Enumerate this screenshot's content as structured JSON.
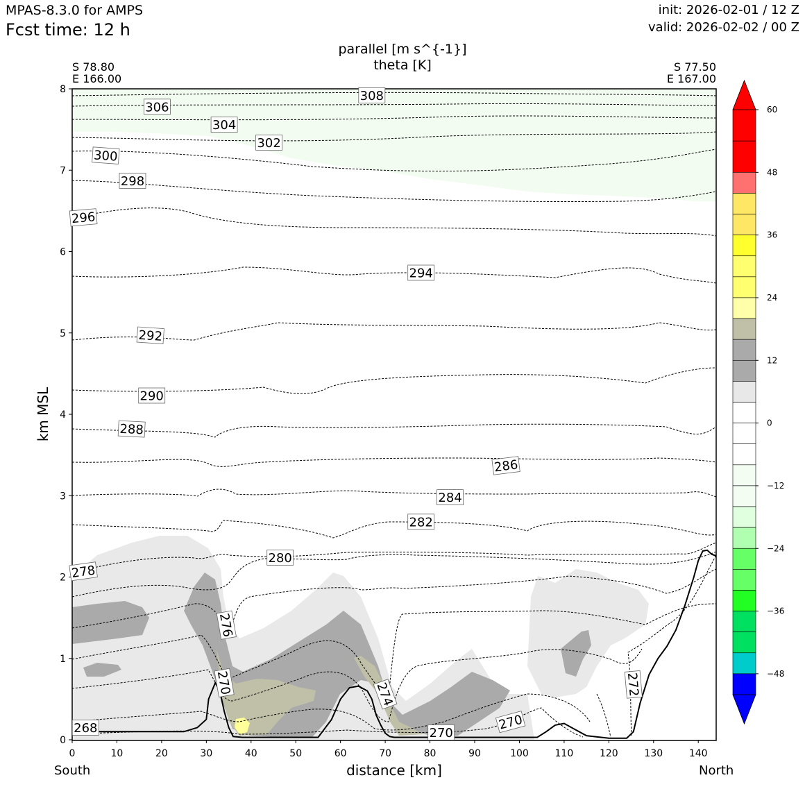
{
  "header": {
    "model": "MPAS-8.3.0 for AMPS",
    "fcst_label": "Fcst time:   12 h",
    "init": "init: 2026-02-01 / 12 Z",
    "valid": "valid: 2026-02-02 / 00 Z"
  },
  "field": {
    "title_line1": "parallel [m s^{-1}]",
    "title_line2": "theta [K]"
  },
  "cross_section": {
    "start_lat": "S 78.80",
    "start_lon": "E 166.00",
    "end_lat": "S 77.50",
    "end_lon": "E 167.00",
    "start_label": "South",
    "end_label": "North"
  },
  "chart_data": {
    "type": "contour cross-section",
    "xlabel": "distance [km]",
    "ylabel": "km MSL",
    "xlim": [
      0,
      144
    ],
    "ylim": [
      0,
      8
    ],
    "x_ticks": [
      0,
      10,
      20,
      30,
      40,
      50,
      60,
      70,
      80,
      90,
      100,
      110,
      120,
      130,
      140
    ],
    "y_ticks": [
      0,
      1,
      2,
      3,
      4,
      5,
      6,
      7,
      8
    ],
    "theta_contour_interval": 2,
    "theta_levels": [
      268,
      270,
      272,
      274,
      276,
      278,
      280,
      282,
      284,
      286,
      288,
      290,
      292,
      294,
      296,
      298,
      300,
      302,
      304,
      306,
      308
    ],
    "theta_labels": [
      {
        "text": "308",
        "x": 67,
        "z": 7.92,
        "rot": 0
      },
      {
        "text": "306",
        "x": 19,
        "z": 7.78,
        "rot": 0
      },
      {
        "text": "304",
        "x": 34,
        "z": 7.56,
        "rot": 0
      },
      {
        "text": "302",
        "x": 44,
        "z": 7.34,
        "rot": 0
      },
      {
        "text": "300",
        "x": 7.5,
        "z": 7.18,
        "rot": 4
      },
      {
        "text": "298",
        "x": 13.5,
        "z": 6.87,
        "rot": 0
      },
      {
        "text": "296",
        "x": 2.5,
        "z": 6.42,
        "rot": -5
      },
      {
        "text": "294",
        "x": 78,
        "z": 5.74,
        "rot": 0
      },
      {
        "text": "292",
        "x": 17.5,
        "z": 4.97,
        "rot": 4
      },
      {
        "text": "290",
        "x": 17.8,
        "z": 4.23,
        "rot": 0
      },
      {
        "text": "288",
        "x": 13.3,
        "z": 3.82,
        "rot": 3
      },
      {
        "text": "286",
        "x": 97,
        "z": 3.37,
        "rot": -7
      },
      {
        "text": "284",
        "x": 84.5,
        "z": 2.98,
        "rot": 0
      },
      {
        "text": "282",
        "x": 78,
        "z": 2.68,
        "rot": 0
      },
      {
        "text": "280",
        "x": 46.5,
        "z": 2.24,
        "rot": 0
      },
      {
        "text": "278",
        "x": 2.5,
        "z": 2.07,
        "rot": -8
      },
      {
        "text": "276",
        "x": 34.5,
        "z": 1.41,
        "rot": 80
      },
      {
        "text": "274",
        "x": 70,
        "z": 0.56,
        "rot": 70
      },
      {
        "text": "272",
        "x": 125.5,
        "z": 0.68,
        "rot": 85
      },
      {
        "text": "270",
        "x": 34,
        "z": 0.7,
        "rot": 80
      },
      {
        "text": "270",
        "x": 82.5,
        "z": 0.09,
        "rot": 0
      },
      {
        "text": "270",
        "x": 98,
        "z": 0.22,
        "rot": -15
      },
      {
        "text": "268",
        "x": 3,
        "z": 0.15,
        "rot": 0
      }
    ],
    "terrain": {
      "x": [
        0,
        10,
        20,
        25,
        28,
        30,
        30.5,
        32,
        33,
        34,
        35,
        36,
        38,
        42,
        55,
        58,
        60,
        62,
        64,
        66,
        67,
        68,
        69,
        70,
        71,
        72,
        75,
        85,
        100,
        104,
        106,
        108,
        110,
        112,
        115,
        120,
        124,
        125.5,
        127,
        129,
        131,
        133,
        135,
        137,
        139,
        140,
        141,
        142,
        143,
        144
      ],
      "z": [
        0.1,
        0.1,
        0.1,
        0.1,
        0.15,
        0.25,
        0.5,
        0.7,
        0.6,
        0.35,
        0.15,
        0.04,
        0.03,
        0.03,
        0.03,
        0.25,
        0.5,
        0.64,
        0.66,
        0.6,
        0.5,
        0.3,
        0.18,
        0.08,
        0.04,
        0.03,
        0.03,
        0.03,
        0.03,
        0.03,
        0.1,
        0.18,
        0.2,
        0.14,
        0.05,
        0.02,
        0.02,
        0.1,
        0.45,
        0.8,
        1.0,
        1.15,
        1.35,
        1.65,
        2.0,
        2.2,
        2.32,
        2.33,
        2.28,
        2.26
      ]
    },
    "colorbar": {
      "label_ticks": [
        60,
        48,
        36,
        24,
        12,
        0,
        -12,
        -24,
        -36,
        -48
      ],
      "boundaries": [
        60,
        54,
        48,
        44,
        40,
        36,
        32,
        28,
        24,
        20,
        16,
        12,
        8,
        4,
        0,
        -4,
        -8,
        -12,
        -16,
        -20,
        -24,
        -28,
        -32,
        -36,
        -40,
        -44,
        -48,
        -52
      ],
      "colors": [
        "#ff0000",
        "#ff7070",
        "#ffe766",
        "#ffff2e",
        "#ffff70",
        "#ffffaa",
        "#c0c0a8",
        "#aaaaaa",
        "#e8e8e8",
        "#ffffff",
        "#ffffff",
        "#f3fdf2",
        "#dfffdf",
        "#b0ffb0",
        "#66ff66",
        "#22ff22",
        "#00e060",
        "#00cccc",
        "#0000ff"
      ],
      "extend_max_color": "#ff0000",
      "extend_min_color": "#0000ff"
    }
  }
}
